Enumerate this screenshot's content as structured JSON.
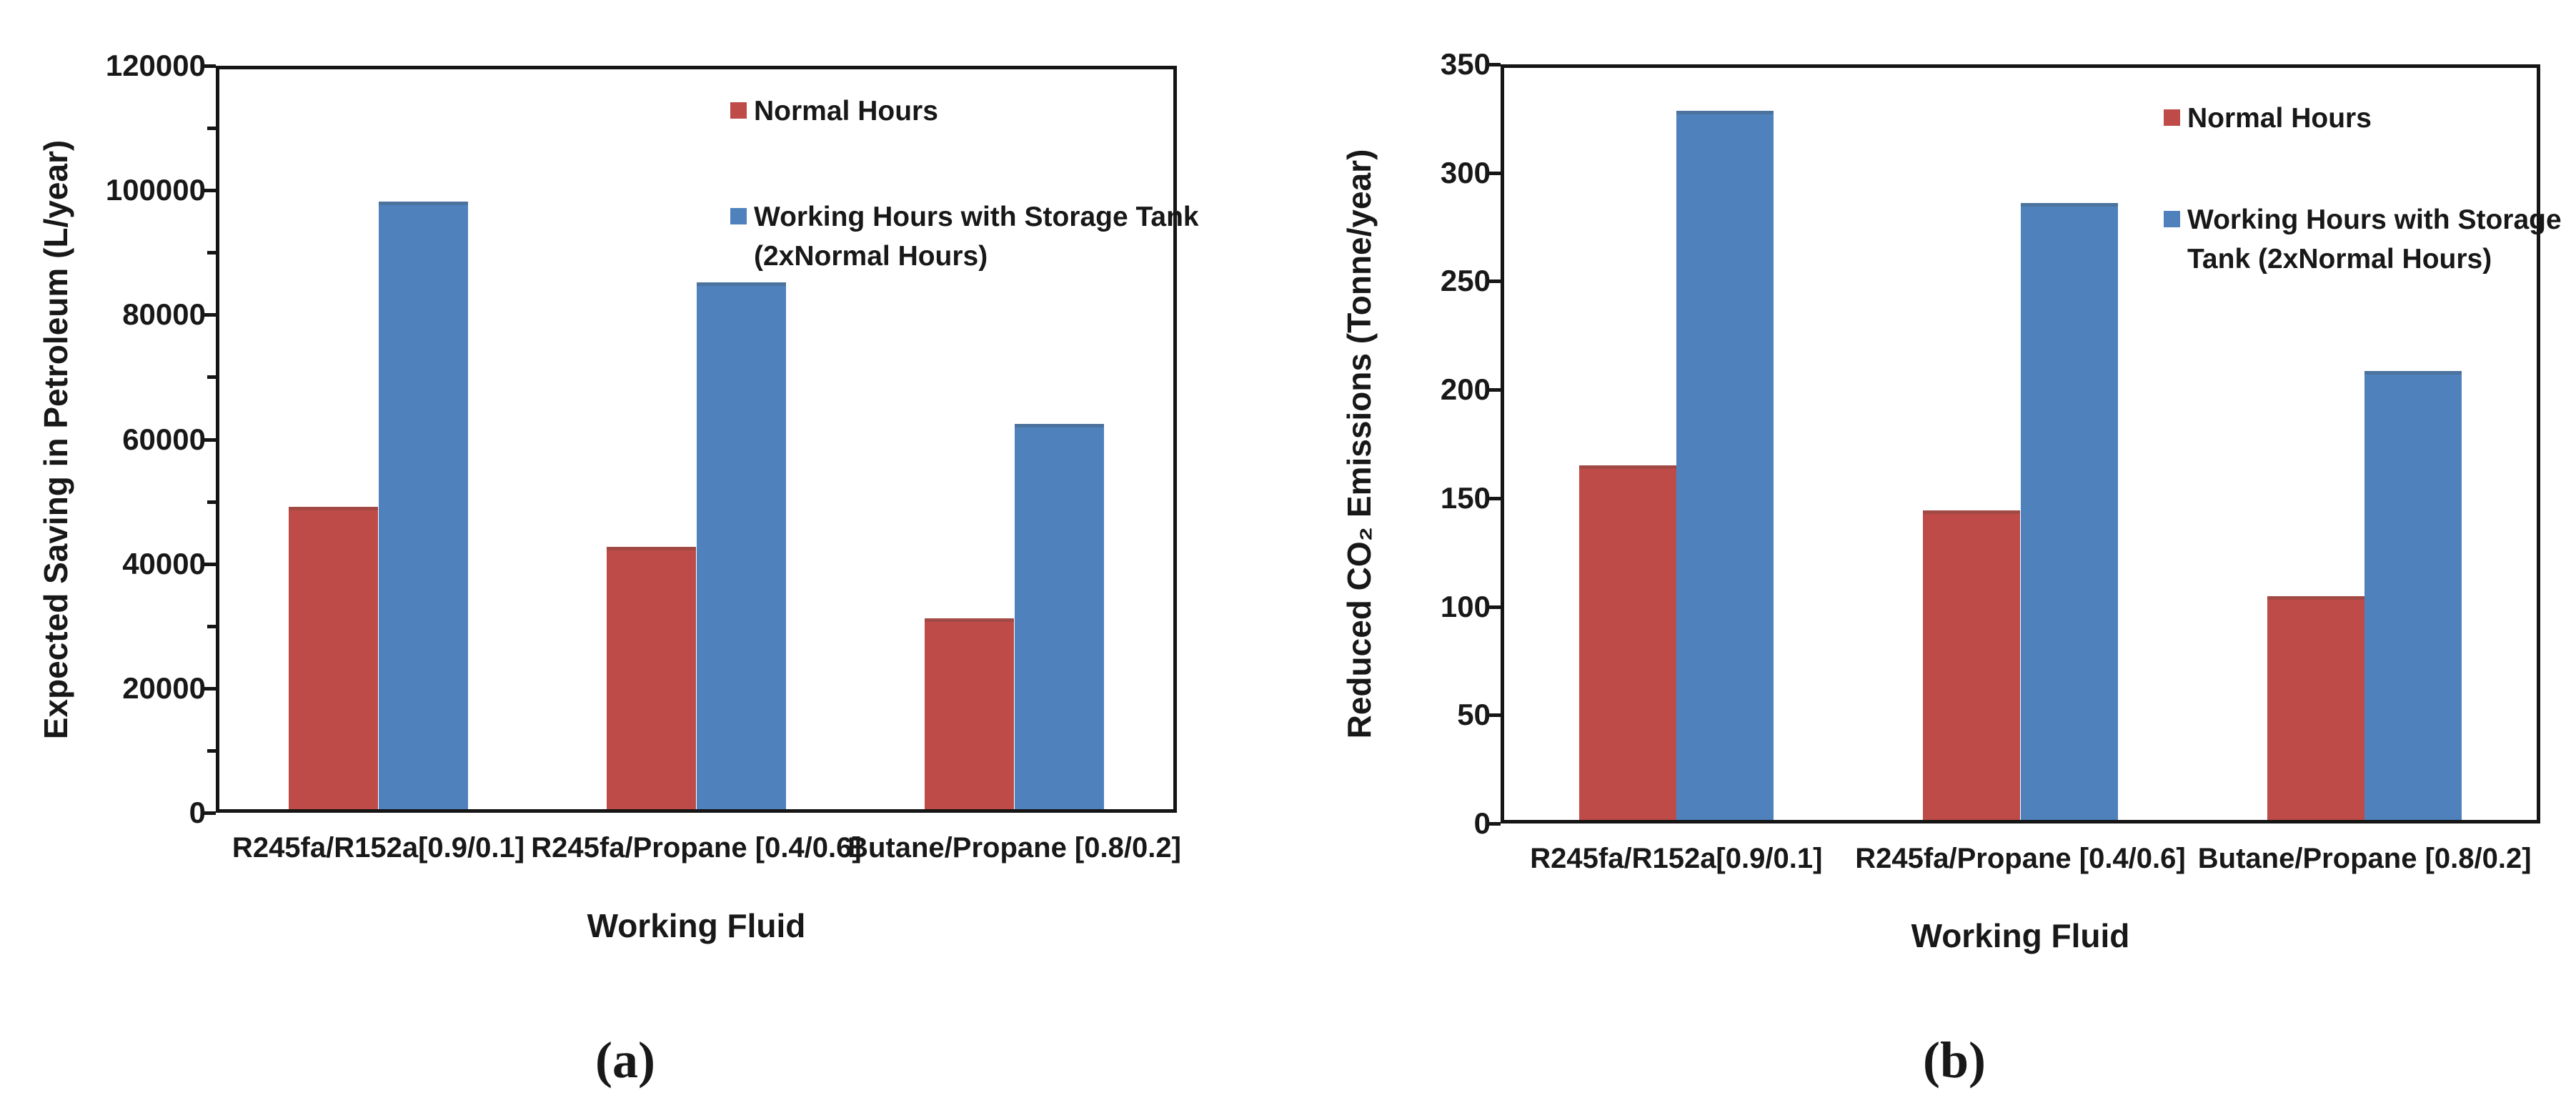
{
  "chart_data": [
    {
      "id": "a",
      "type": "bar",
      "caption": "(a)",
      "xlabel": "Working Fluid",
      "ylabel": "Expected Saving in Petroleum (L/year)",
      "categories": [
        "R245fa/R152a[0.9/0.1]",
        "R245fa/Propane [0.4/0.6]",
        "Butane/Propane [0.8/0.2]"
      ],
      "series": [
        {
          "name": "Normal Hours",
          "color": "#BE4B48",
          "values": [
            49000,
            42500,
            31000
          ],
          "legend_lines": [
            "Normal Hours"
          ]
        },
        {
          "name": "Working Hours with Storage Tank (2xNormal Hours)",
          "color": "#4F81BD",
          "values": [
            98500,
            85500,
            62500
          ],
          "legend_lines": [
            "Working Hours with Storage Tank",
            "(2xNormal Hours)"
          ]
        }
      ],
      "ylim": [
        0,
        120000
      ],
      "yticks": [
        0,
        20000,
        40000,
        60000,
        80000,
        100000,
        120000
      ],
      "yminor_step": 10000,
      "grid": false,
      "legend_position": "top-right-inside"
    },
    {
      "id": "b",
      "type": "bar",
      "caption": "(b)",
      "xlabel": "Working Fluid",
      "ylabel": "Reduced CO₂ Emissions (Tonne/year)",
      "categories": [
        "R245fa/R152a[0.9/0.1]",
        "R245fa/Propane [0.4/0.6]",
        "Butane/Propane [0.8/0.2]"
      ],
      "series": [
        {
          "name": "Normal Hours",
          "color": "#BE4B48",
          "values": [
            165,
            144,
            104
          ],
          "legend_lines": [
            "Normal Hours"
          ]
        },
        {
          "name": "Working Hours with Storage Tank (2xNormal Hours)",
          "color": "#4F81BD",
          "values": [
            330,
            287,
            209
          ],
          "legend_lines": [
            "Working Hours with Storage",
            "Tank (2xNormal Hours)"
          ]
        }
      ],
      "ylim": [
        0,
        350
      ],
      "yticks": [
        0,
        50,
        100,
        150,
        200,
        250,
        300,
        350
      ],
      "yminor_step": null,
      "grid": false,
      "legend_position": "top-right-inside"
    }
  ]
}
